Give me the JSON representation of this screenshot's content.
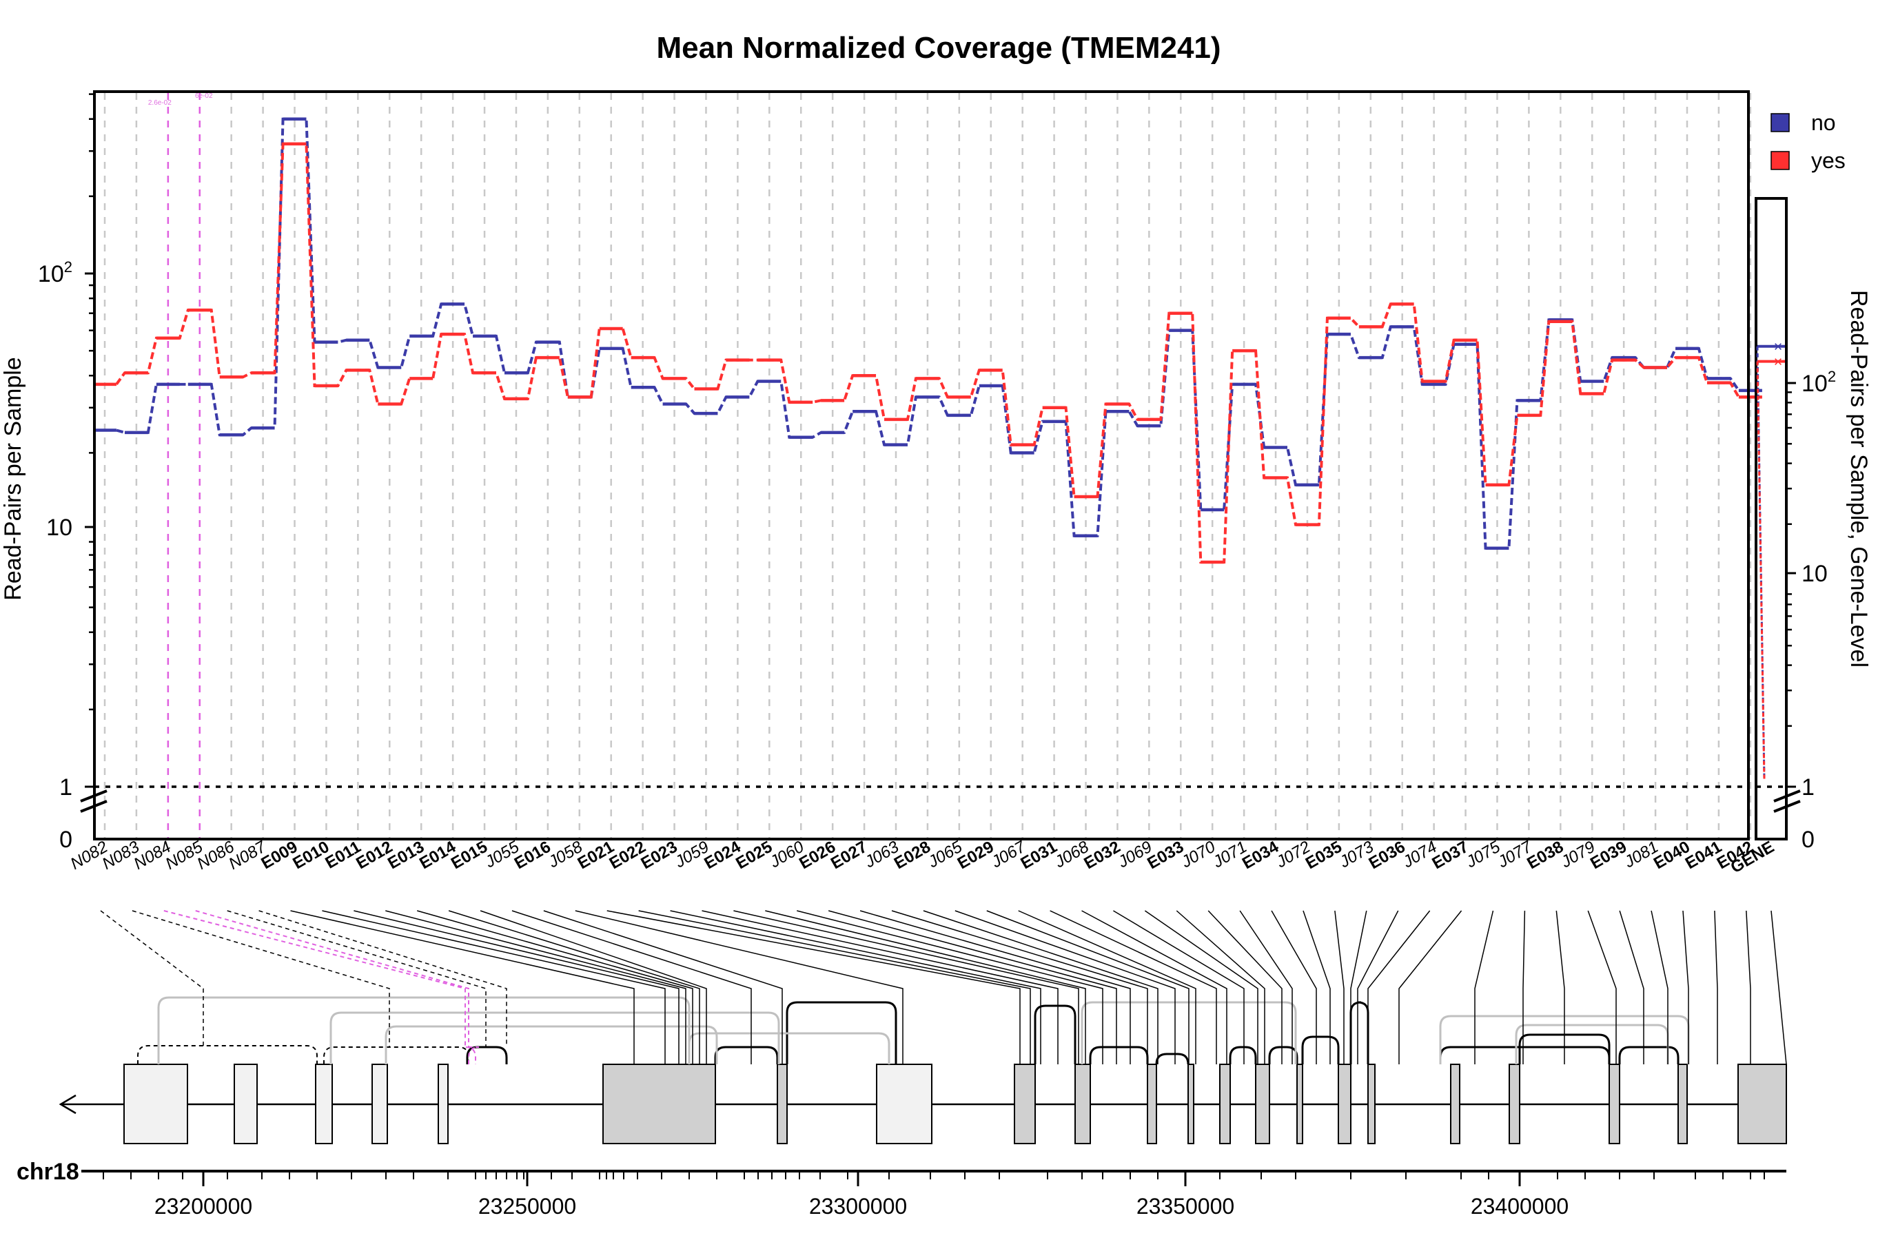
{
  "chart_data": {
    "type": "line",
    "title": "Mean Normalized Coverage (TMEM241)",
    "ylabel": "Read-Pairs per Sample",
    "ylabel_right": "Read-Pairs per Sample, Gene-Level",
    "yscale": "log",
    "ylim": [
      1,
      500
    ],
    "yticks": [
      "1",
      "10",
      "10^2"
    ],
    "y_break_label": "0",
    "right_yticks": [
      "1",
      "10",
      "10^2"
    ],
    "right_y_break_label": "0",
    "legend": {
      "position": "top-right"
    },
    "features": [
      "N082",
      "N083",
      "N084",
      "N085",
      "N086",
      "N087",
      "E009",
      "E010",
      "E011",
      "E012",
      "E013",
      "E014",
      "E015",
      "J055",
      "E016",
      "J058",
      "E021",
      "E022",
      "E023",
      "J059",
      "E024",
      "E025",
      "J060",
      "E026",
      "E027",
      "J063",
      "E028",
      "J065",
      "E029",
      "J067",
      "E031",
      "J068",
      "E032",
      "J069",
      "E033",
      "J070",
      "J071",
      "E034",
      "J072",
      "E035",
      "J073",
      "E036",
      "J074",
      "E037",
      "J075",
      "J077",
      "E038",
      "J079",
      "E039",
      "J081",
      "E040",
      "E041",
      "E042"
    ],
    "highlighted_features": [
      "N084",
      "N085"
    ],
    "gene_label": "GENE",
    "series": [
      {
        "name": "no",
        "color": "#3b3ba8",
        "values": [
          24.5,
          24,
          37,
          37,
          23.5,
          25,
          400,
          54,
          55,
          43,
          57,
          76,
          57,
          41,
          54,
          33,
          51,
          36,
          31,
          28.5,
          33,
          38,
          23,
          24,
          29,
          21.5,
          33,
          28,
          36.5,
          20,
          26.5,
          9.5,
          29,
          25.5,
          60,
          12,
          37,
          21,
          15,
          58,
          47,
          62,
          37,
          53,
          8.5,
          32,
          66,
          38,
          47,
          43,
          51,
          39,
          35
        ],
        "gene_value": 152
      },
      {
        "name": "yes",
        "color": "#ff3030",
        "values": [
          37,
          41,
          56,
          72,
          39.5,
          41,
          320,
          36.5,
          42,
          31,
          39,
          58,
          41,
          32.5,
          47,
          33,
          61,
          47,
          39,
          35.5,
          46,
          46,
          31.5,
          32,
          40,
          27,
          39,
          33,
          42,
          21.5,
          30,
          13.5,
          31,
          27,
          70,
          7.5,
          50,
          16,
          10.5,
          67,
          62,
          76,
          38,
          55,
          15,
          28,
          65,
          34,
          46,
          43,
          47,
          37.5,
          33
        ],
        "gene_value": 128
      }
    ],
    "annotations": [
      "2.6e-02",
      "6e-02"
    ],
    "genome_axis": {
      "chromosome": "chr18",
      "ticks": [
        "23200000",
        "23250000",
        "23300000",
        "23350000",
        "23400000"
      ]
    }
  }
}
